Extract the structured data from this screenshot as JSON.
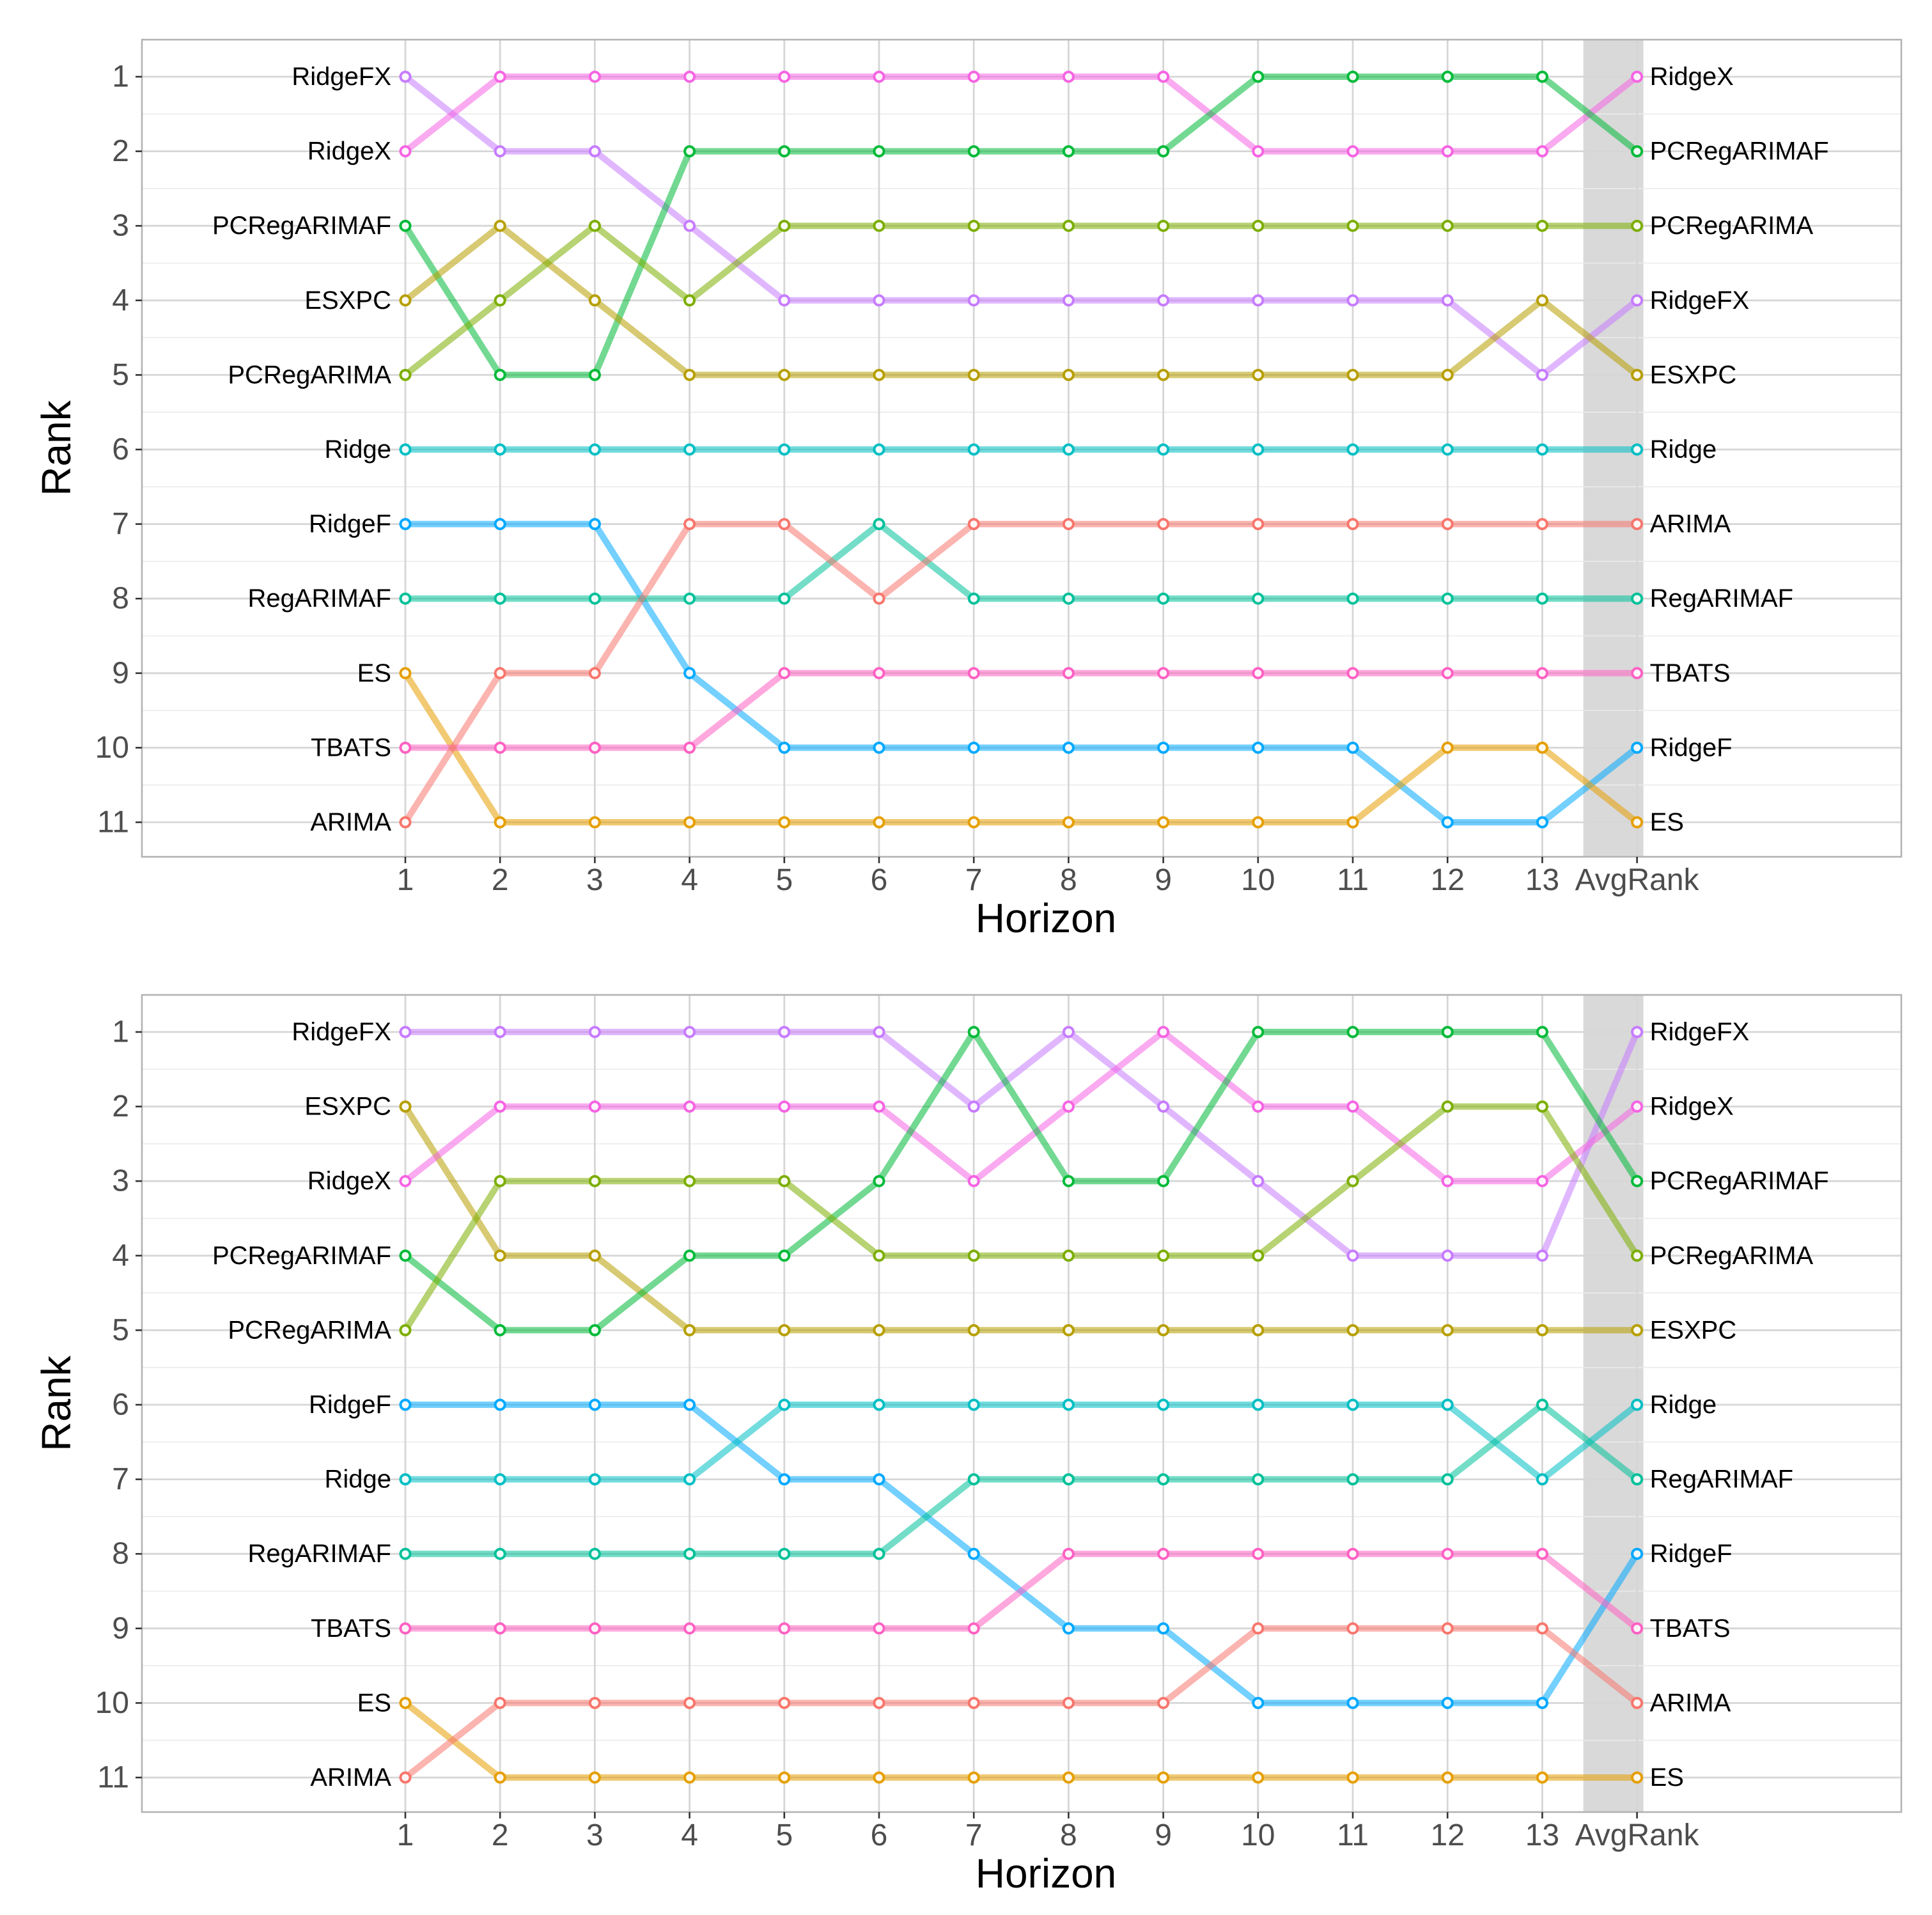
{
  "chart_data": [
    {
      "type": "line",
      "xlabel": "Horizon",
      "ylabel": "Rank",
      "x_ticks": [
        "1",
        "2",
        "3",
        "4",
        "5",
        "6",
        "7",
        "8",
        "9",
        "10",
        "11",
        "12",
        "13",
        "AvgRank"
      ],
      "y_ticks": [
        1,
        2,
        3,
        4,
        5,
        6,
        7,
        8,
        9,
        10,
        11
      ],
      "ylim": [
        11.5,
        0.5
      ],
      "highlight_band": "AvgRank",
      "grid": true,
      "series": [
        {
          "name": "RidgeFX",
          "color": "#C77CFF",
          "values": [
            1,
            2,
            2,
            3,
            4,
            4,
            4,
            4,
            4,
            4,
            4,
            4,
            5,
            4
          ]
        },
        {
          "name": "RidgeX",
          "color": "#F564E3",
          "values": [
            2,
            1,
            1,
            1,
            1,
            1,
            1,
            1,
            1,
            2,
            2,
            2,
            2,
            1
          ]
        },
        {
          "name": "PCRegARIMAF",
          "color": "#00BA38",
          "values": [
            3,
            5,
            5,
            2,
            2,
            2,
            2,
            2,
            2,
            1,
            1,
            1,
            1,
            2
          ]
        },
        {
          "name": "ESXPC",
          "color": "#B79F00",
          "values": [
            4,
            3,
            4,
            5,
            5,
            5,
            5,
            5,
            5,
            5,
            5,
            5,
            4,
            5
          ]
        },
        {
          "name": "PCRegARIMA",
          "color": "#7CAE00",
          "values": [
            5,
            4,
            3,
            4,
            3,
            3,
            3,
            3,
            3,
            3,
            3,
            3,
            3,
            3
          ]
        },
        {
          "name": "Ridge",
          "color": "#00BFC4",
          "values": [
            6,
            6,
            6,
            6,
            6,
            6,
            6,
            6,
            6,
            6,
            6,
            6,
            6,
            6
          ]
        },
        {
          "name": "RidgeF",
          "color": "#00A9FF",
          "values": [
            7,
            7,
            7,
            9,
            10,
            10,
            10,
            10,
            10,
            10,
            10,
            11,
            11,
            10
          ]
        },
        {
          "name": "RegARIMAF",
          "color": "#00C19A",
          "values": [
            8,
            8,
            8,
            8,
            8,
            7,
            8,
            8,
            8,
            8,
            8,
            8,
            8,
            8
          ]
        },
        {
          "name": "ES",
          "color": "#E69F00",
          "values": [
            9,
            11,
            11,
            11,
            11,
            11,
            11,
            11,
            11,
            11,
            11,
            10,
            10,
            11
          ]
        },
        {
          "name": "TBATS",
          "color": "#FF61C3",
          "values": [
            10,
            10,
            10,
            10,
            9,
            9,
            9,
            9,
            9,
            9,
            9,
            9,
            9,
            9
          ]
        },
        {
          "name": "ARIMA",
          "color": "#F8766D",
          "values": [
            11,
            9,
            9,
            7,
            7,
            8,
            7,
            7,
            7,
            7,
            7,
            7,
            7,
            7
          ]
        }
      ]
    },
    {
      "type": "line",
      "xlabel": "Horizon",
      "ylabel": "Rank",
      "x_ticks": [
        "1",
        "2",
        "3",
        "4",
        "5",
        "6",
        "7",
        "8",
        "9",
        "10",
        "11",
        "12",
        "13",
        "AvgRank"
      ],
      "y_ticks": [
        1,
        2,
        3,
        4,
        5,
        6,
        7,
        8,
        9,
        10,
        11
      ],
      "ylim": [
        11.5,
        0.5
      ],
      "highlight_band": "AvgRank",
      "grid": true,
      "series": [
        {
          "name": "RidgeFX",
          "color": "#C77CFF",
          "values": [
            1,
            1,
            1,
            1,
            1,
            1,
            2,
            1,
            2,
            3,
            4,
            4,
            4,
            1
          ]
        },
        {
          "name": "ESXPC",
          "color": "#B79F00",
          "values": [
            2,
            4,
            4,
            5,
            5,
            5,
            5,
            5,
            5,
            5,
            5,
            5,
            5,
            5
          ]
        },
        {
          "name": "RidgeX",
          "color": "#F564E3",
          "values": [
            3,
            2,
            2,
            2,
            2,
            2,
            3,
            2,
            1,
            2,
            2,
            3,
            3,
            2
          ]
        },
        {
          "name": "PCRegARIMAF",
          "color": "#00BA38",
          "values": [
            4,
            5,
            5,
            4,
            4,
            3,
            1,
            3,
            3,
            1,
            1,
            1,
            1,
            3
          ]
        },
        {
          "name": "PCRegARIMA",
          "color": "#7CAE00",
          "values": [
            5,
            3,
            3,
            3,
            3,
            4,
            4,
            4,
            4,
            4,
            3,
            2,
            2,
            4
          ]
        },
        {
          "name": "RidgeF",
          "color": "#00A9FF",
          "values": [
            6,
            6,
            6,
            6,
            7,
            7,
            8,
            9,
            9,
            10,
            10,
            10,
            10,
            8
          ]
        },
        {
          "name": "Ridge",
          "color": "#00BFC4",
          "values": [
            7,
            7,
            7,
            7,
            6,
            6,
            6,
            6,
            6,
            6,
            6,
            6,
            7,
            6
          ]
        },
        {
          "name": "RegARIMAF",
          "color": "#00C19A",
          "values": [
            8,
            8,
            8,
            8,
            8,
            8,
            7,
            7,
            7,
            7,
            7,
            7,
            6,
            7
          ]
        },
        {
          "name": "TBATS",
          "color": "#FF61C3",
          "values": [
            9,
            9,
            9,
            9,
            9,
            9,
            9,
            8,
            8,
            8,
            8,
            8,
            8,
            9
          ]
        },
        {
          "name": "ES",
          "color": "#E69F00",
          "values": [
            10,
            11,
            11,
            11,
            11,
            11,
            11,
            11,
            11,
            11,
            11,
            11,
            11,
            11
          ]
        },
        {
          "name": "ARIMA",
          "color": "#F8766D",
          "values": [
            11,
            10,
            10,
            10,
            10,
            10,
            10,
            10,
            10,
            9,
            9,
            9,
            9,
            10
          ]
        }
      ]
    }
  ]
}
